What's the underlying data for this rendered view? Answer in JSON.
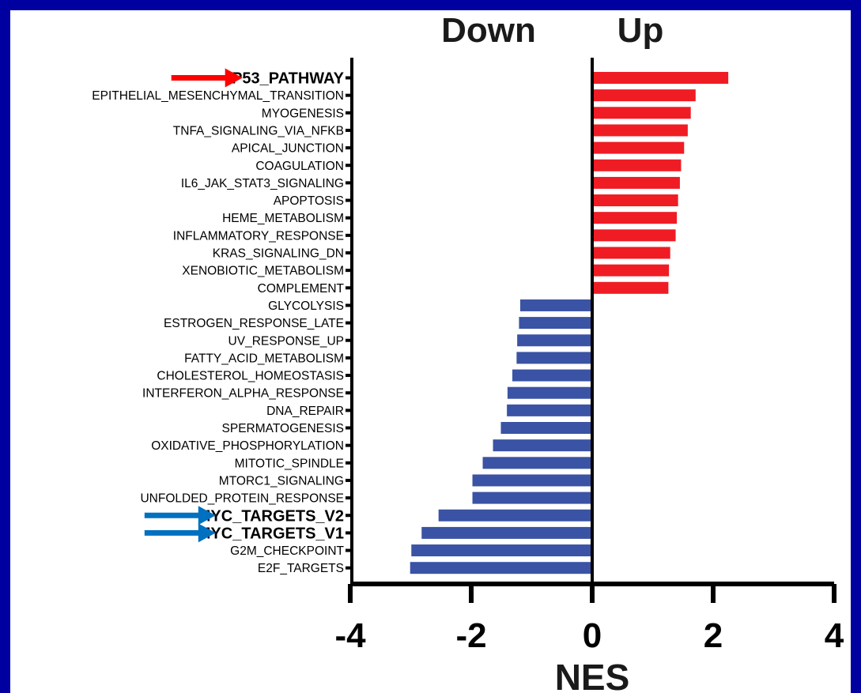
{
  "chart_data": {
    "type": "bar",
    "orientation": "horizontal",
    "header_left": "Down",
    "header_right": "Up",
    "xlabel": "NES",
    "ylabel": "",
    "xlim": [
      -4,
      4
    ],
    "xticks": [
      -4,
      -2,
      0,
      2,
      4
    ],
    "categories": [
      "P53_PATHWAY",
      "EPITHELIAL_MESENCHYMAL_TRANSITION",
      "MYOGENESIS",
      "TNFA_SIGNALING_VIA_NFKB",
      "APICAL_JUNCTION",
      "COAGULATION",
      "IL6_JAK_STAT3_SIGNALING",
      "APOPTOSIS",
      "HEME_METABOLISM",
      "INFLAMMATORY_RESPONSE",
      "KRAS_SIGNALING_DN",
      "XENOBIOTIC_METABOLISM",
      "COMPLEMENT",
      "GLYCOLYSIS",
      "ESTROGEN_RESPONSE_LATE",
      "UV_RESPONSE_UP",
      "FATTY_ACID_METABOLISM",
      "CHOLESTEROL_HOMEOSTASIS",
      "INTERFERON_ALPHA_RESPONSE",
      "DNA_REPAIR",
      "SPERMATOGENESIS",
      "OXIDATIVE_PHOSPHORYLATION",
      "MITOTIC_SPINDLE",
      "MTORC1_SIGNALING",
      "UNFOLDED_PROTEIN_RESPONSE",
      "MYC_TARGETS_V2",
      "MYC_TARGETS_V1",
      "G2M_CHECKPOINT",
      "E2F_TARGETS"
    ],
    "values": [
      2.25,
      1.71,
      1.63,
      1.58,
      1.52,
      1.47,
      1.45,
      1.42,
      1.4,
      1.38,
      1.29,
      1.27,
      1.26,
      -1.19,
      -1.21,
      -1.24,
      -1.25,
      -1.32,
      -1.4,
      -1.41,
      -1.51,
      -1.64,
      -1.81,
      -1.98,
      -1.98,
      -2.54,
      -2.82,
      -2.99,
      -3.01
    ],
    "highlighted": [
      "P53_PATHWAY",
      "MYC_TARGETS_V2",
      "MYC_TARGETS_V1"
    ],
    "arrow_colors": {
      "P53_PATHWAY": "#ff0000",
      "MYC_TARGETS_V2": "#0070c0",
      "MYC_TARGETS_V1": "#0070c0"
    },
    "colors": {
      "up": "#ef1c24",
      "down": "#3a53a4",
      "background": "#0000a0",
      "panel": "#ffffff"
    }
  }
}
